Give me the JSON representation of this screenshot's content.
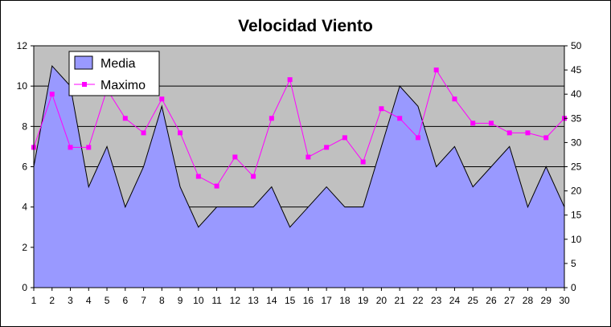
{
  "chart_data": {
    "type": "area",
    "title": "Velocidad Viento",
    "x": [
      1,
      2,
      3,
      4,
      5,
      6,
      7,
      8,
      9,
      10,
      11,
      12,
      13,
      14,
      15,
      16,
      17,
      18,
      19,
      20,
      21,
      22,
      23,
      24,
      25,
      26,
      27,
      28,
      29,
      30
    ],
    "series": [
      {
        "name": "Media",
        "axis": "left",
        "type": "area",
        "values": [
          6,
          11,
          10,
          5,
          7,
          4,
          6,
          9,
          5,
          3,
          4,
          4,
          4,
          5,
          3,
          4,
          5,
          4,
          4,
          7,
          10,
          9,
          6,
          7,
          5,
          6,
          7,
          4,
          6,
          4
        ]
      },
      {
        "name": "Maximo",
        "axis": "right",
        "type": "line",
        "values": [
          29,
          40,
          29,
          29,
          41,
          35,
          32,
          39,
          32,
          23,
          21,
          27,
          23,
          35,
          43,
          27,
          29,
          31,
          26,
          37,
          35,
          31,
          45,
          39,
          34,
          34,
          32,
          32,
          31,
          35
        ]
      }
    ],
    "ylim_left": [
      0,
      12
    ],
    "yticks_left": [
      0,
      2,
      4,
      6,
      8,
      10,
      12
    ],
    "ylim_right": [
      0,
      50
    ],
    "yticks_right": [
      0,
      5,
      10,
      15,
      20,
      25,
      30,
      35,
      40,
      45,
      50
    ],
    "grid": true,
    "legend_position": "top-left",
    "colors": {
      "plot_background": "#c0c0c0",
      "area_fill": "#9999ff",
      "line_marker": "#ff00ff",
      "gridline": "#000000"
    }
  }
}
